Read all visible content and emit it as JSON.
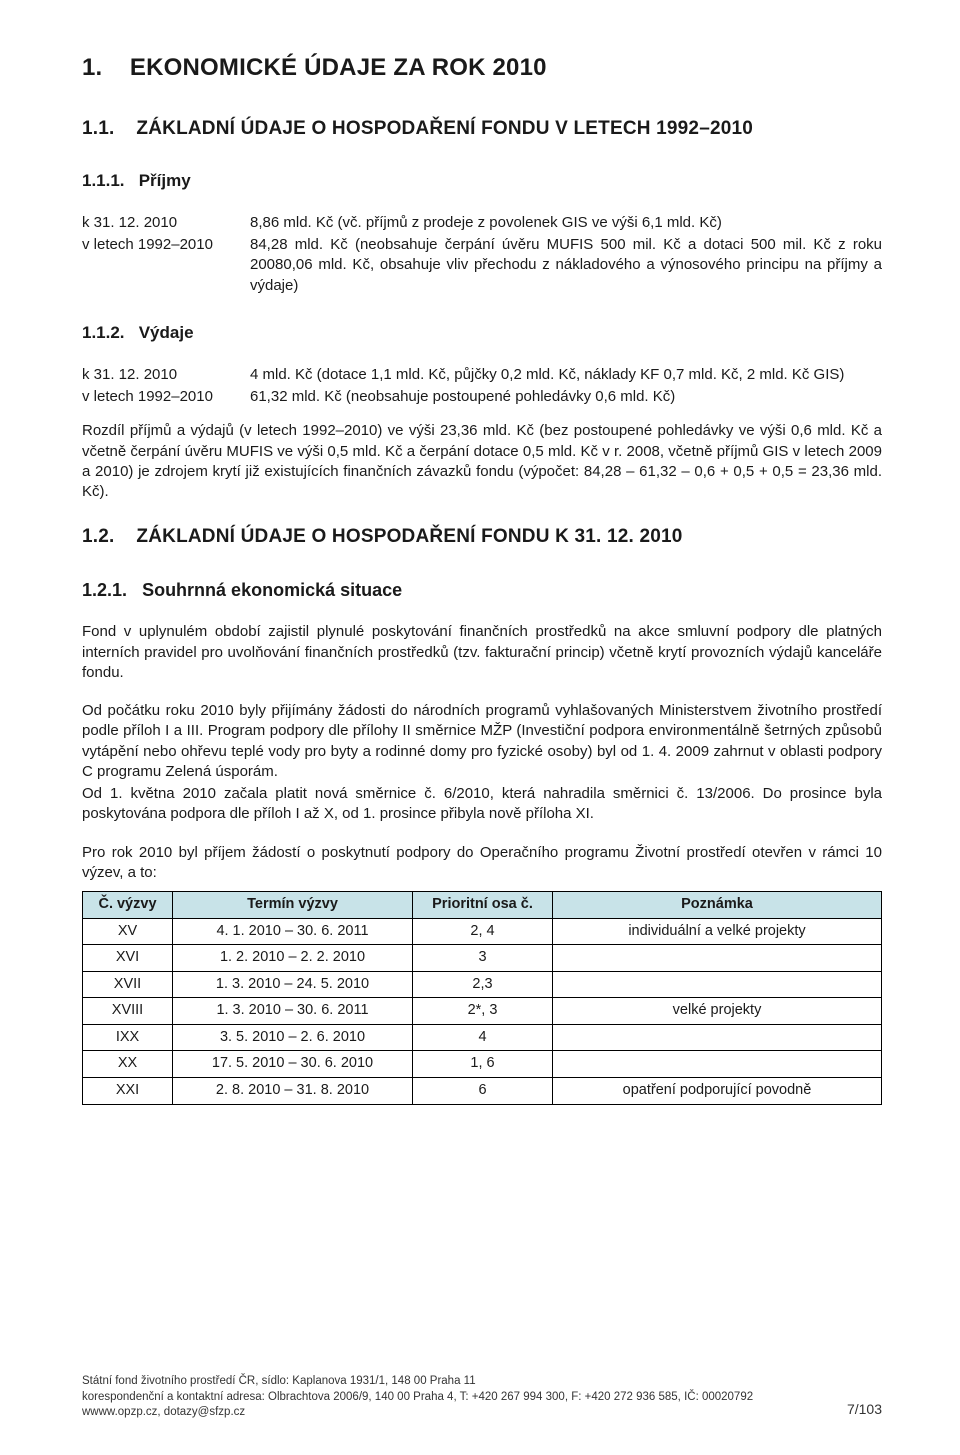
{
  "section1": {
    "num": "1.",
    "title": "EKONOMICKÉ ÚDAJE ZA ROK 2010"
  },
  "section11": {
    "num": "1.1.",
    "title": "ZÁKLADNÍ ÚDAJE O HOSPODAŘENÍ FONDU V LETECH 1992–2010"
  },
  "s111": {
    "num": "1.1.1.",
    "title": "Příjmy",
    "rows": [
      {
        "k": "k 31. 12. 2010",
        "v": "8,86 mld. Kč (vč. příjmů z prodeje z povolenek GIS ve výši 6,1 mld. Kč)"
      },
      {
        "k": "v letech 1992–2010",
        "v": "84,28 mld. Kč (neobsahuje čerpání úvěru MUFIS 500 mil. Kč a dotaci 500 mil. Kč z roku 20080,06 mld. Kč, obsahuje vliv přechodu z nákladového a výnosového principu na příjmy a výdaje)"
      }
    ]
  },
  "s112": {
    "num": "1.1.2.",
    "title": "Výdaje",
    "rows": [
      {
        "k": "k 31. 12. 2010",
        "v": "4 mld. Kč (dotace 1,1 mld. Kč, půjčky 0,2 mld. Kč, náklady KF 0,7 mld. Kč, 2 mld. Kč GIS)"
      },
      {
        "k": "v letech 1992–2010",
        "v": "61,32 mld. Kč (neobsahuje postoupené pohledávky 0,6 mld. Kč)"
      }
    ],
    "para": "Rozdíl příjmů a výdajů (v letech 1992–2010) ve výši 23,36 mld. Kč (bez postoupené pohledávky ve výši 0,6 mld. Kč a včetně čerpání úvěru MUFIS ve výši 0,5 mld. Kč a čerpání dotace 0,5 mld. Kč v r. 2008, včetně příjmů GIS v letech 2009 a 2010) je zdrojem krytí již existujících finančních závazků fondu (výpočet: 84,28 – 61,32 – 0,6 + 0,5 + 0,5 = 23,36 mld. Kč)."
  },
  "section12": {
    "num": "1.2.",
    "title": "ZÁKLADNÍ ÚDAJE O HOSPODAŘENÍ FONDU K 31. 12. 2010"
  },
  "s121": {
    "num": "1.2.1.",
    "title": "Souhrnná ekonomická situace",
    "p1": "Fond v uplynulém období zajistil plynulé poskytování finančních prostředků na akce smluvní podpory dle platných interních pravidel pro uvolňování finančních prostředků (tzv. fakturační princip) včetně krytí provozních výdajů kanceláře fondu.",
    "p2": "Od počátku roku 2010 byly přijímány žádosti do národních programů vyhlašovaných Ministerstvem životního prostředí podle příloh I a III. Program podpory dle přílohy II směrnice MŽP (Investiční podpora environmentálně šetrných způsobů vytápění nebo ohřevu teplé vody pro byty a rodinné domy pro fyzické osoby) byl od 1. 4. 2009 zahrnut v oblasti podpory C programu Zelená úsporám.",
    "p2b": "Od 1. května 2010 začala platit nová směrnice č. 6/2010, která nahradila směrnici č. 13/2006. Do prosince byla poskytována podpora dle příloh I až X, od 1. prosince přibyla nově příloha XI.",
    "p3": "Pro rok 2010 byl příjem žádostí o poskytnutí podpory do Operačního programu Životní prostředí otevřen v rámci 10 výzev, a to:"
  },
  "table": {
    "header_bg": "#c8e3e8",
    "border_color": "#000000",
    "columns": [
      "Č. výzvy",
      "Termín výzvy",
      "Prioritní osa č.",
      "Poznámka"
    ],
    "rows": [
      [
        "XV",
        "4. 1. 2010 – 30. 6. 2011",
        "2, 4",
        "individuální a velké projekty"
      ],
      [
        "XVI",
        "1. 2. 2010 – 2. 2. 2010",
        "3",
        ""
      ],
      [
        "XVII",
        "1. 3. 2010 – 24. 5. 2010",
        "2,3",
        ""
      ],
      [
        "XVIII",
        "1. 3. 2010 – 30. 6. 2011",
        "2*, 3",
        "velké projekty"
      ],
      [
        "IXX",
        "3. 5. 2010 – 2. 6. 2010",
        "4",
        ""
      ],
      [
        "XX",
        "17. 5. 2010 – 30. 6. 2010",
        "1, 6",
        ""
      ],
      [
        "XXI",
        "2. 8. 2010 – 31. 8. 2010",
        "6",
        "opatření podporující povodně"
      ]
    ]
  },
  "footer": {
    "line1": "Státní fond životního prostředí ČR, sídlo: Kaplanova 1931/1, 148 00  Praha 11",
    "line2": "korespondenční a kontaktní adresa: Olbrachtova 2006/9, 140 00  Praha 4, T: +420 267 994 300, F: +420 272 936 585, IČ: 00020792",
    "line3": "wwww.opzp.cz, dotazy@sfzp.cz",
    "page": "7/103"
  }
}
